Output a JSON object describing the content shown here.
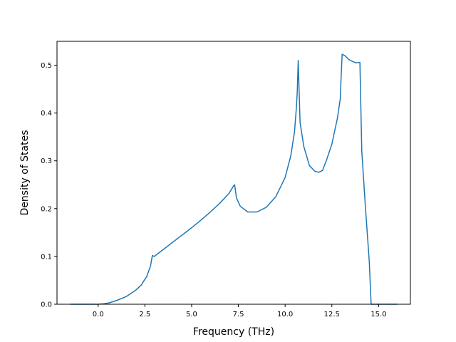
{
  "chart_data": {
    "type": "line",
    "title": "",
    "xlabel": "Frequency (THz)",
    "ylabel": "Density of States",
    "xlim": [
      -2.2,
      16.7
    ],
    "ylim": [
      0,
      0.55
    ],
    "xticks": [
      0.0,
      2.5,
      5.0,
      7.5,
      10.0,
      12.5,
      15.0
    ],
    "xtick_labels": [
      "0.0",
      "2.5",
      "5.0",
      "7.5",
      "10.0",
      "12.5",
      "15.0"
    ],
    "yticks": [
      0.0,
      0.1,
      0.2,
      0.3,
      0.4,
      0.5
    ],
    "ytick_labels": [
      "0.0",
      "0.1",
      "0.2",
      "0.3",
      "0.4",
      "0.5"
    ],
    "grid": false,
    "legend": "none",
    "series": [
      {
        "color": "#1f77b4",
        "x": [
          -1.5,
          -1.0,
          -0.5,
          0.0,
          0.3,
          0.6,
          1.0,
          1.5,
          2.0,
          2.3,
          2.6,
          2.8,
          2.9,
          3.0,
          3.2,
          3.5,
          4.0,
          4.5,
          5.0,
          5.5,
          6.0,
          6.5,
          7.0,
          7.2,
          7.3,
          7.4,
          7.6,
          8.0,
          8.5,
          9.0,
          9.5,
          10.0,
          10.3,
          10.5,
          10.6,
          10.65,
          10.7,
          10.8,
          11.0,
          11.3,
          11.6,
          11.8,
          12.0,
          12.2,
          12.5,
          12.8,
          12.95,
          13.0,
          13.05,
          13.2,
          13.4,
          13.6,
          13.8,
          14.0,
          14.1,
          14.3,
          14.5,
          14.6,
          14.7,
          15.0,
          15.5,
          16.0
        ],
        "y": [
          0.0,
          0.0,
          0.0,
          0.0,
          0.001,
          0.003,
          0.008,
          0.016,
          0.029,
          0.04,
          0.058,
          0.08,
          0.102,
          0.1,
          0.106,
          0.115,
          0.13,
          0.145,
          0.16,
          0.176,
          0.193,
          0.211,
          0.232,
          0.245,
          0.25,
          0.222,
          0.205,
          0.193,
          0.193,
          0.203,
          0.225,
          0.265,
          0.31,
          0.36,
          0.41,
          0.445,
          0.51,
          0.38,
          0.33,
          0.29,
          0.278,
          0.276,
          0.28,
          0.3,
          0.335,
          0.39,
          0.43,
          0.48,
          0.523,
          0.52,
          0.512,
          0.508,
          0.505,
          0.506,
          0.32,
          0.2,
          0.09,
          0.0,
          0.0,
          0.0,
          0.0,
          0.0
        ]
      }
    ]
  }
}
